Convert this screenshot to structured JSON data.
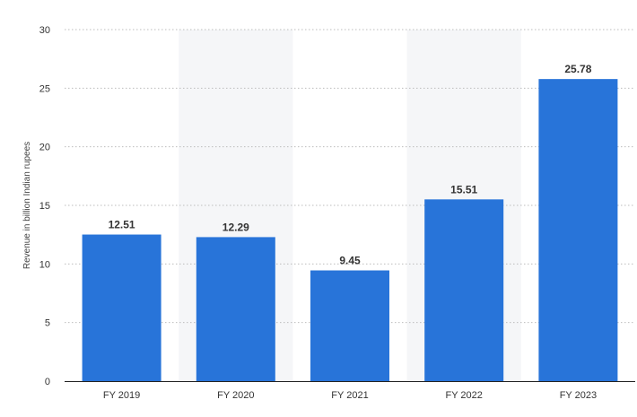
{
  "chart_data": {
    "type": "bar",
    "categories": [
      "FY 2019",
      "FY 2020",
      "FY 2021",
      "FY 2022",
      "FY 2023"
    ],
    "values": [
      12.51,
      12.29,
      9.45,
      15.51,
      25.78
    ],
    "value_labels": [
      "12.51",
      "12.29",
      "9.45",
      "15.51",
      "25.78"
    ],
    "y_ticks": [
      "0",
      "5",
      "10",
      "15",
      "20",
      "25",
      "30"
    ],
    "title": "",
    "xlabel": "",
    "ylabel": "Revenue in billion Indian rupees",
    "ylim": [
      0,
      30
    ],
    "grid": true,
    "bar_color": "#2874d9",
    "legend": "none"
  }
}
